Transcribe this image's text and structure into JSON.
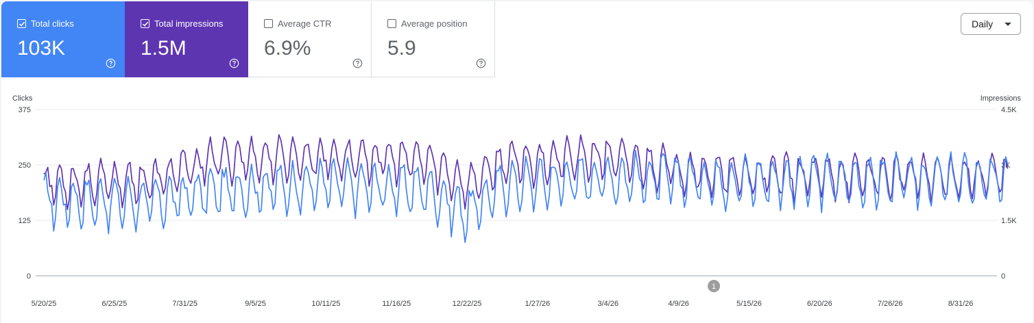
{
  "metrics": [
    {
      "id": "clicks",
      "label": "Total clicks",
      "value": "103K",
      "checked": true,
      "color": "#4285f4"
    },
    {
      "id": "impressions",
      "label": "Total impressions",
      "value": "1.5M",
      "checked": true,
      "color": "#5e35b1"
    },
    {
      "id": "ctr",
      "label": "Average CTR",
      "value": "6.9%",
      "checked": false
    },
    {
      "id": "position",
      "label": "Average position",
      "value": "5.9",
      "checked": false
    }
  ],
  "period_selector": {
    "label": "Daily"
  },
  "chart_data": {
    "type": "line",
    "x_start": "2025-05-20",
    "x_end": "2026-09-24",
    "x_tick_labels": [
      "5/20/25",
      "6/25/25",
      "7/31/25",
      "9/5/25",
      "10/11/25",
      "11/16/25",
      "12/22/25",
      "1/27/26",
      "3/4/26",
      "4/9/26",
      "5/15/26",
      "6/20/26",
      "7/26/26",
      "8/31/26"
    ],
    "y_left": {
      "title": "Clicks",
      "ticks": [
        0,
        125,
        250,
        375
      ],
      "tick_labels": [
        "0",
        "125",
        "250",
        "375"
      ],
      "range": [
        0,
        375
      ]
    },
    "y_right": {
      "title": "Impressions",
      "ticks": [
        0,
        1500,
        3000,
        4500
      ],
      "tick_labels": [
        "0",
        "1.5K",
        "3K",
        "4.5K"
      ],
      "range": [
        0,
        4500
      ]
    },
    "grid": true,
    "annotation": {
      "label": "1",
      "date": "2026-04-27"
    },
    "series": [
      {
        "name": "Total clicks",
        "axis": "left",
        "color": "#4285f4",
        "segments": [
          {
            "date": "2025-05-20",
            "base": 180
          },
          {
            "date": "2025-07-15",
            "base": 175
          },
          {
            "date": "2025-08-15",
            "base": 200
          },
          {
            "date": "2025-10-10",
            "base": 215
          },
          {
            "date": "2025-12-01",
            "base": 205
          },
          {
            "date": "2025-12-22",
            "base": 150
          },
          {
            "date": "2026-01-10",
            "base": 215
          },
          {
            "date": "2026-03-01",
            "base": 230
          },
          {
            "date": "2026-05-01",
            "base": 225
          },
          {
            "date": "2026-09-24",
            "base": 225
          }
        ],
        "weekly_amplitude": 38,
        "noise": 18
      },
      {
        "name": "Total impressions",
        "axis": "right",
        "color": "#5e35b1",
        "segments": [
          {
            "date": "2025-05-20",
            "base": 2600
          },
          {
            "date": "2025-07-15",
            "base": 2650
          },
          {
            "date": "2025-08-15",
            "base": 3250
          },
          {
            "date": "2025-10-10",
            "base": 3300
          },
          {
            "date": "2025-12-01",
            "base": 3200
          },
          {
            "date": "2025-12-22",
            "base": 2550
          },
          {
            "date": "2026-01-10",
            "base": 3150
          },
          {
            "date": "2026-03-01",
            "base": 3300
          },
          {
            "date": "2026-05-01",
            "base": 2800
          },
          {
            "date": "2026-09-24",
            "base": 2800
          }
        ],
        "weekly_amplitude": 380,
        "noise": 180
      }
    ]
  },
  "icons": {
    "help": "help-circle-icon",
    "check": "check-icon",
    "dropdown": "caret-down-icon",
    "annotation": "annotation-marker"
  }
}
